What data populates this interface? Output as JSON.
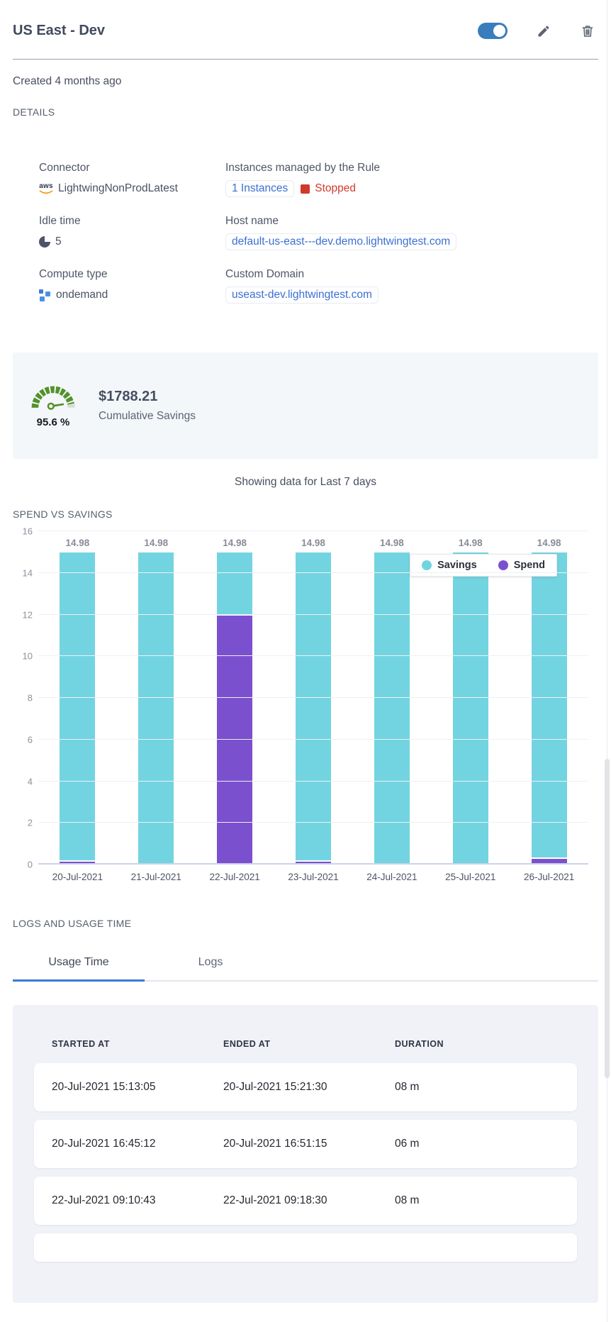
{
  "header": {
    "title": "US East - Dev",
    "toggle_on": true
  },
  "meta": {
    "created": "Created 4 months ago",
    "details_heading": "DETAILS"
  },
  "details": {
    "connector": {
      "label": "Connector",
      "icon_text": "aws",
      "value": "LightwingNonProdLatest"
    },
    "instances": {
      "label": "Instances managed by the Rule",
      "link": "1 Instances",
      "status": "Stopped"
    },
    "idle_time": {
      "label": "Idle time",
      "value": "5"
    },
    "host_name": {
      "label": "Host name",
      "value": "default-us-east---dev.demo.lightwingtest.com"
    },
    "compute_type": {
      "label": "Compute type",
      "value": "ondemand"
    },
    "custom_domain": {
      "label": "Custom Domain",
      "value": "useast-dev.lightwingtest.com"
    }
  },
  "savings": {
    "percent": "95.6 %",
    "amount": "$1788.21",
    "caption": "Cumulative Savings"
  },
  "period_note": "Showing data for Last 7 days",
  "chart_heading": "SPEND VS SAVINGS",
  "chart_data": {
    "type": "bar",
    "stacked": true,
    "title": "SPEND VS SAVINGS",
    "categories": [
      "20-Jul-2021",
      "21-Jul-2021",
      "22-Jul-2021",
      "23-Jul-2021",
      "24-Jul-2021",
      "25-Jul-2021",
      "26-Jul-2021"
    ],
    "series": [
      {
        "name": "Savings",
        "color": "#72d4e0",
        "values": [
          14.83,
          14.98,
          3.03,
          14.83,
          14.98,
          14.98,
          14.7
        ]
      },
      {
        "name": "Spend",
        "color": "#7b50ce",
        "values": [
          0.15,
          0,
          11.95,
          0.15,
          0,
          0,
          0.28
        ]
      }
    ],
    "bar_labels": [
      "14.98",
      "14.98",
      "14.98",
      "14.98",
      "14.98",
      "14.98",
      "14.98"
    ],
    "ylim": [
      0,
      16
    ],
    "yticks": [
      0,
      2,
      4,
      6,
      8,
      10,
      12,
      14,
      16
    ],
    "grid": true,
    "legend_position": "top-right"
  },
  "logs_section": {
    "heading": "LOGS AND USAGE TIME",
    "tabs": [
      {
        "label": "Usage Time",
        "active": true
      },
      {
        "label": "Logs",
        "active": false
      }
    ],
    "table": {
      "columns": [
        "STARTED AT",
        "ENDED AT",
        "DURATION"
      ],
      "rows": [
        [
          "20-Jul-2021 15:13:05",
          "20-Jul-2021 15:21:30",
          "08 m"
        ],
        [
          "20-Jul-2021 16:45:12",
          "20-Jul-2021 16:51:15",
          "06 m"
        ],
        [
          "22-Jul-2021 09:10:43",
          "22-Jul-2021 09:18:30",
          "08 m"
        ]
      ]
    }
  },
  "colors": {
    "toggle_on": "#3a7dbd",
    "link_blue": "#3b6fd3",
    "status_red": "#d13a2e",
    "savings_teal": "#72d4e0",
    "spend_purple": "#7b50ce",
    "gauge_green": "#54912b",
    "tab_accent": "#3a7cd5",
    "panel_bg": "#f3f7fa",
    "table_panel_bg": "#f1f2f8"
  }
}
